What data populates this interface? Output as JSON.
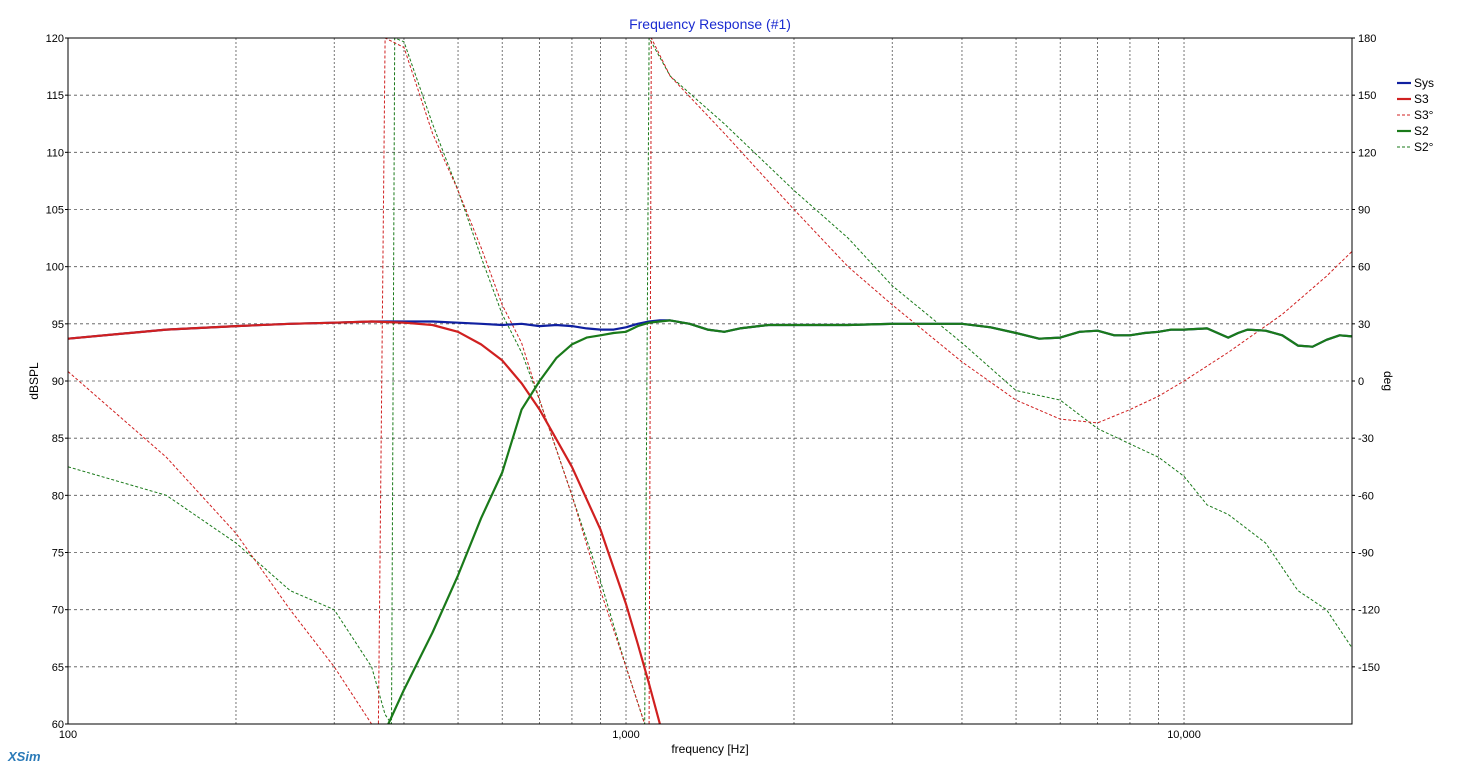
{
  "chart_data": {
    "type": "line",
    "title": "Frequency Response (#1)",
    "xlabel": "frequency [Hz]",
    "ylabel": "dBSPL",
    "y2label": "deg",
    "x_scale": "log",
    "xlim": [
      100,
      20000
    ],
    "ylim": [
      60,
      120
    ],
    "y2lim": [
      -180,
      180
    ],
    "x_tick_labels": [
      {
        "x": 100,
        "label": "100"
      },
      {
        "x": 1000,
        "label": "1,000"
      },
      {
        "x": 10000,
        "label": "10,000"
      }
    ],
    "y_ticks": [
      120,
      115,
      110,
      105,
      100,
      95,
      90,
      85,
      80,
      75,
      70,
      65,
      60
    ],
    "y2_ticks": [
      180,
      150,
      120,
      90,
      60,
      30,
      0,
      -30,
      -60,
      -90,
      -120,
      -150
    ],
    "grid": true,
    "legend_position": "right",
    "series": [
      {
        "name": "Sys",
        "axis": "left",
        "style": "solid",
        "color": "#1020a0",
        "points": [
          [
            100,
            93.7
          ],
          [
            150,
            94.5
          ],
          [
            200,
            94.8
          ],
          [
            250,
            95.0
          ],
          [
            300,
            95.1
          ],
          [
            350,
            95.2
          ],
          [
            400,
            95.2
          ],
          [
            450,
            95.2
          ],
          [
            500,
            95.1
          ],
          [
            550,
            95.0
          ],
          [
            600,
            94.9
          ],
          [
            650,
            95.0
          ],
          [
            700,
            94.8
          ],
          [
            750,
            94.9
          ],
          [
            800,
            94.8
          ],
          [
            850,
            94.6
          ],
          [
            900,
            94.5
          ],
          [
            950,
            94.5
          ],
          [
            1000,
            94.7
          ],
          [
            1050,
            95.0
          ],
          [
            1100,
            95.2
          ],
          [
            1150,
            95.3
          ],
          [
            1200,
            95.3
          ],
          [
            1300,
            95.0
          ],
          [
            1400,
            94.5
          ],
          [
            1500,
            94.3
          ],
          [
            1600,
            94.6
          ],
          [
            1800,
            94.9
          ],
          [
            2000,
            94.9
          ],
          [
            2500,
            94.9
          ],
          [
            3000,
            95.0
          ],
          [
            3500,
            95.0
          ],
          [
            4000,
            95.0
          ],
          [
            4500,
            94.7
          ],
          [
            5000,
            94.2
          ],
          [
            5500,
            93.7
          ],
          [
            6000,
            93.8
          ],
          [
            6500,
            94.3
          ],
          [
            7000,
            94.4
          ],
          [
            7500,
            94.0
          ],
          [
            8000,
            94.0
          ],
          [
            8500,
            94.2
          ],
          [
            9000,
            94.3
          ],
          [
            9500,
            94.5
          ],
          [
            10000,
            94.5
          ],
          [
            11000,
            94.6
          ],
          [
            12000,
            93.8
          ],
          [
            12500,
            94.2
          ],
          [
            13000,
            94.5
          ],
          [
            14000,
            94.4
          ],
          [
            15000,
            94.0
          ],
          [
            16000,
            93.1
          ],
          [
            17000,
            93.0
          ],
          [
            18000,
            93.6
          ],
          [
            19000,
            94.0
          ],
          [
            20000,
            93.9
          ]
        ]
      },
      {
        "name": "S3",
        "axis": "left",
        "style": "solid",
        "color": "#d02020",
        "points": [
          [
            100,
            93.7
          ],
          [
            150,
            94.5
          ],
          [
            200,
            94.8
          ],
          [
            250,
            95.0
          ],
          [
            300,
            95.1
          ],
          [
            350,
            95.2
          ],
          [
            400,
            95.1
          ],
          [
            450,
            94.9
          ],
          [
            500,
            94.3
          ],
          [
            550,
            93.2
          ],
          [
            600,
            91.8
          ],
          [
            650,
            89.8
          ],
          [
            700,
            87.5
          ],
          [
            800,
            82.5
          ],
          [
            900,
            77.0
          ],
          [
            1000,
            70.5
          ],
          [
            1050,
            67.0
          ],
          [
            1100,
            63.5
          ],
          [
            1150,
            60.0
          ]
        ]
      },
      {
        "name": "S3°",
        "axis": "right",
        "style": "dashed",
        "color": "#d02020",
        "points": [
          [
            100,
            5
          ],
          [
            150,
            -40
          ],
          [
            200,
            -80
          ],
          [
            250,
            -120
          ],
          [
            300,
            -150
          ],
          [
            350,
            -180
          ],
          [
            360,
            -180
          ],
          [
            370,
            180
          ],
          [
            400,
            175
          ],
          [
            450,
            130
          ],
          [
            500,
            100
          ],
          [
            550,
            70
          ],
          [
            600,
            40
          ],
          [
            650,
            20
          ],
          [
            700,
            -10
          ],
          [
            800,
            -60
          ],
          [
            900,
            -110
          ],
          [
            1000,
            -150
          ],
          [
            1080,
            -180
          ],
          [
            1100,
            -180
          ],
          [
            1110,
            180
          ],
          [
            1200,
            160
          ],
          [
            1500,
            130
          ],
          [
            2000,
            90
          ],
          [
            2500,
            60
          ],
          [
            3000,
            40
          ],
          [
            4000,
            10
          ],
          [
            5000,
            -10
          ],
          [
            6000,
            -20
          ],
          [
            7000,
            -22
          ],
          [
            8000,
            -15
          ],
          [
            9000,
            -8
          ],
          [
            10000,
            0
          ],
          [
            12000,
            15
          ],
          [
            15000,
            35
          ],
          [
            18000,
            55
          ],
          [
            20000,
            68
          ]
        ]
      },
      {
        "name": "S2",
        "axis": "left",
        "style": "solid",
        "color": "#1a7a1a",
        "points": [
          [
            375,
            60.0
          ],
          [
            400,
            63.0
          ],
          [
            450,
            68.0
          ],
          [
            500,
            73.0
          ],
          [
            550,
            78.0
          ],
          [
            600,
            82.0
          ],
          [
            650,
            87.5
          ],
          [
            700,
            90.0
          ],
          [
            750,
            92.0
          ],
          [
            800,
            93.2
          ],
          [
            850,
            93.8
          ],
          [
            900,
            94.0
          ],
          [
            950,
            94.2
          ],
          [
            1000,
            94.3
          ],
          [
            1050,
            94.8
          ],
          [
            1100,
            95.1
          ],
          [
            1150,
            95.2
          ],
          [
            1200,
            95.3
          ],
          [
            1300,
            95.0
          ],
          [
            1400,
            94.5
          ],
          [
            1500,
            94.3
          ],
          [
            1600,
            94.6
          ],
          [
            1800,
            94.9
          ],
          [
            2000,
            94.9
          ],
          [
            2500,
            94.9
          ],
          [
            3000,
            95.0
          ],
          [
            3500,
            95.0
          ],
          [
            4000,
            95.0
          ],
          [
            4500,
            94.7
          ],
          [
            5000,
            94.2
          ],
          [
            5500,
            93.7
          ],
          [
            6000,
            93.8
          ],
          [
            6500,
            94.3
          ],
          [
            7000,
            94.4
          ],
          [
            7500,
            94.0
          ],
          [
            8000,
            94.0
          ],
          [
            8500,
            94.2
          ],
          [
            9000,
            94.3
          ],
          [
            9500,
            94.5
          ],
          [
            10000,
            94.5
          ],
          [
            11000,
            94.6
          ],
          [
            12000,
            93.8
          ],
          [
            12500,
            94.2
          ],
          [
            13000,
            94.5
          ],
          [
            14000,
            94.4
          ],
          [
            15000,
            94.0
          ],
          [
            16000,
            93.1
          ],
          [
            17000,
            93.0
          ],
          [
            18000,
            93.6
          ],
          [
            19000,
            94.0
          ],
          [
            20000,
            93.9
          ]
        ]
      },
      {
        "name": "S2°",
        "axis": "right",
        "style": "dashed",
        "color": "#1a7a1a",
        "points": [
          [
            100,
            -45
          ],
          [
            150,
            -60
          ],
          [
            200,
            -85
          ],
          [
            250,
            -110
          ],
          [
            300,
            -120
          ],
          [
            350,
            -150
          ],
          [
            370,
            -175
          ],
          [
            380,
            -180
          ],
          [
            385,
            180
          ],
          [
            400,
            178
          ],
          [
            450,
            135
          ],
          [
            500,
            100
          ],
          [
            550,
            65
          ],
          [
            600,
            35
          ],
          [
            650,
            15
          ],
          [
            700,
            -10
          ],
          [
            800,
            -60
          ],
          [
            900,
            -105
          ],
          [
            1000,
            -150
          ],
          [
            1080,
            -180
          ],
          [
            1100,
            180
          ],
          [
            1200,
            160
          ],
          [
            1500,
            135
          ],
          [
            2000,
            100
          ],
          [
            2500,
            75
          ],
          [
            3000,
            50
          ],
          [
            4000,
            20
          ],
          [
            5000,
            -5
          ],
          [
            6000,
            -10
          ],
          [
            7000,
            -25
          ],
          [
            8000,
            -33
          ],
          [
            9000,
            -40
          ],
          [
            10000,
            -50
          ],
          [
            11000,
            -65
          ],
          [
            12000,
            -70
          ],
          [
            14000,
            -85
          ],
          [
            16000,
            -110
          ],
          [
            18000,
            -120
          ],
          [
            20000,
            -140
          ]
        ]
      }
    ]
  },
  "legend": [
    {
      "label": "Sys",
      "color": "#1020a0",
      "style": "solid"
    },
    {
      "label": "S3",
      "color": "#d02020",
      "style": "solid"
    },
    {
      "label": "S3°",
      "color": "#d02020",
      "style": "dashed"
    },
    {
      "label": "S2",
      "color": "#1a7a1a",
      "style": "solid"
    },
    {
      "label": "S2°",
      "color": "#1a7a1a",
      "style": "dashed"
    }
  ],
  "brand": "XSim"
}
